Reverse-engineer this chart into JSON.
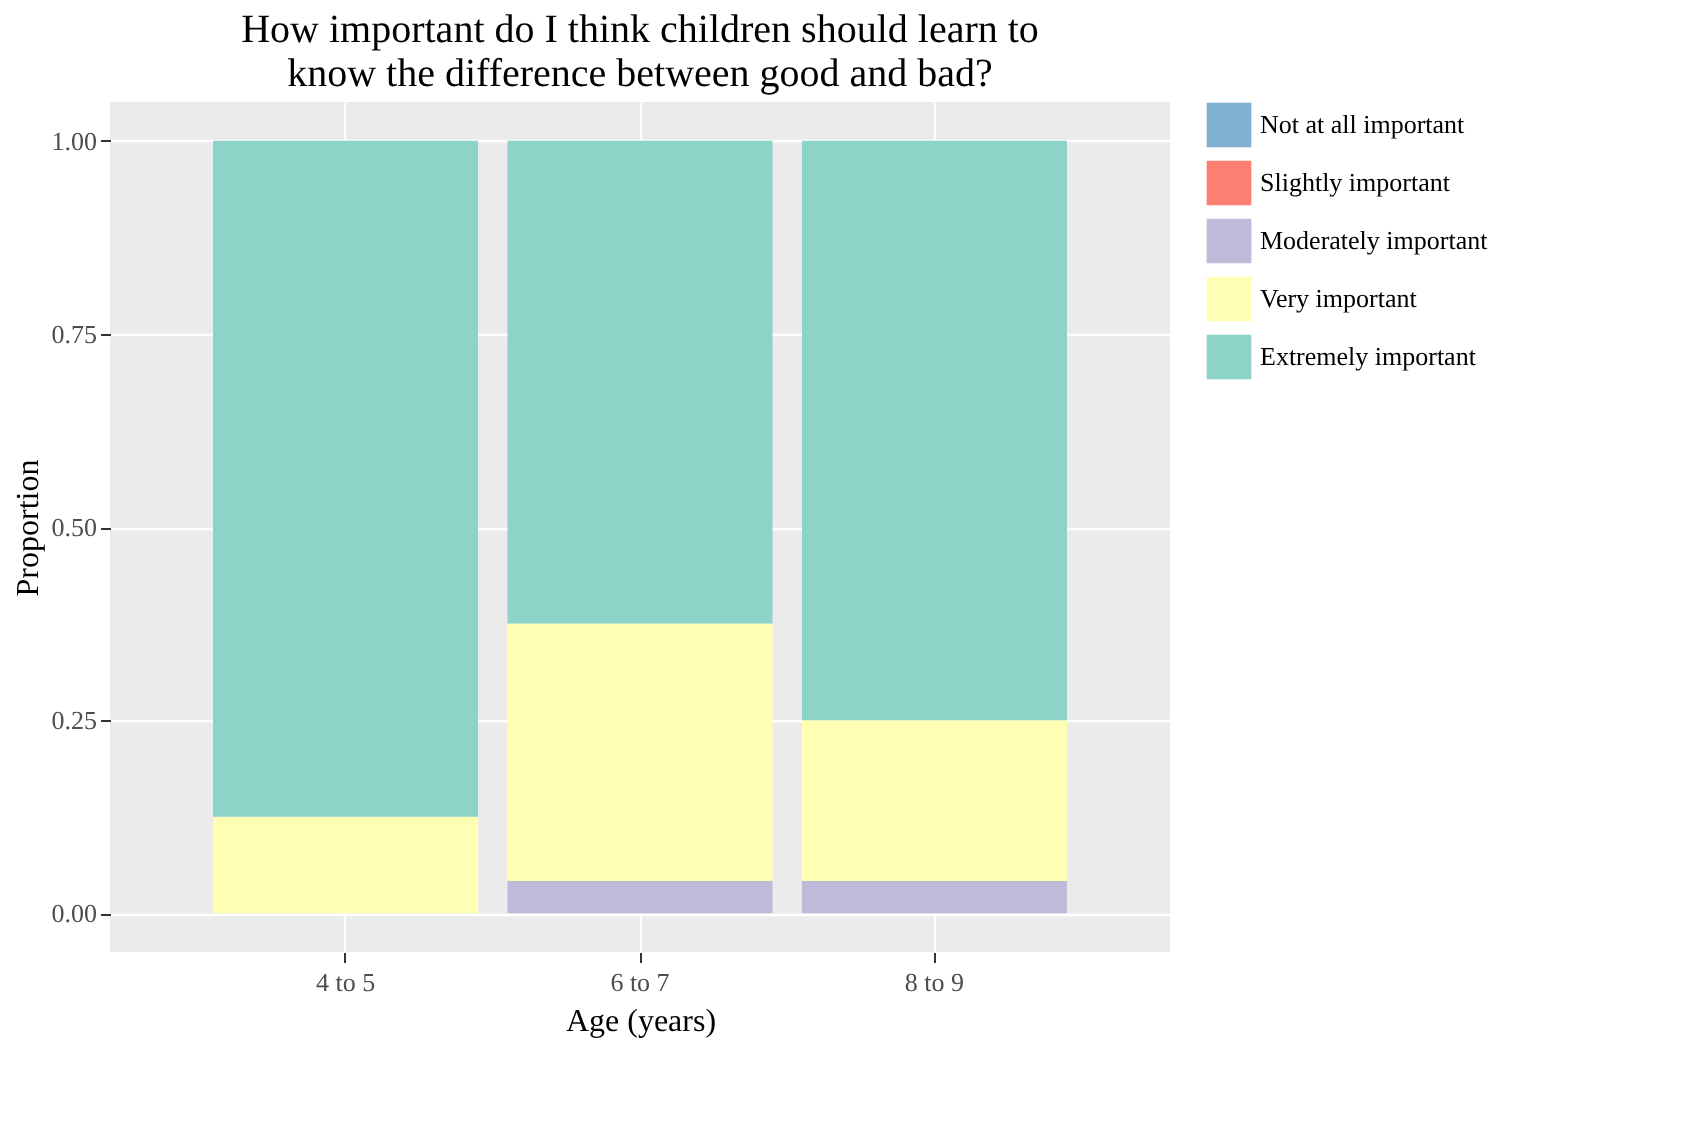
{
  "chart_data": {
    "type": "bar",
    "title": "How important do I think children should learn to\nknow the difference between good and bad?",
    "xlabel": "Age (years)",
    "ylabel": "Proportion",
    "categories": [
      "4 to 5",
      "6 to 7",
      "8 to 9"
    ],
    "stacked": true,
    "series": [
      {
        "name": "Not at all important",
        "color": "#80b1d3",
        "values": [
          0,
          0,
          0
        ]
      },
      {
        "name": "Slightly important",
        "color": "#fb8072",
        "values": [
          0,
          0,
          0
        ]
      },
      {
        "name": "Moderately important",
        "color": "#bebada",
        "values": [
          0,
          0.042,
          0.042
        ]
      },
      {
        "name": "Very important",
        "color": "#ffffb3",
        "values": [
          0.125,
          0.333,
          0.208
        ]
      },
      {
        "name": "Extremely important",
        "color": "#8dd3c7",
        "values": [
          0.875,
          0.625,
          0.75
        ]
      }
    ],
    "ylim": [
      -0.05,
      1.05
    ],
    "yticks": [
      {
        "value": 0,
        "label": "0.00"
      },
      {
        "value": 0.25,
        "label": "0.25"
      },
      {
        "value": 0.5,
        "label": "0.50"
      },
      {
        "value": 0.75,
        "label": "0.75"
      },
      {
        "value": 1,
        "label": "1.00"
      }
    ],
    "grid": true,
    "legend": "right"
  }
}
